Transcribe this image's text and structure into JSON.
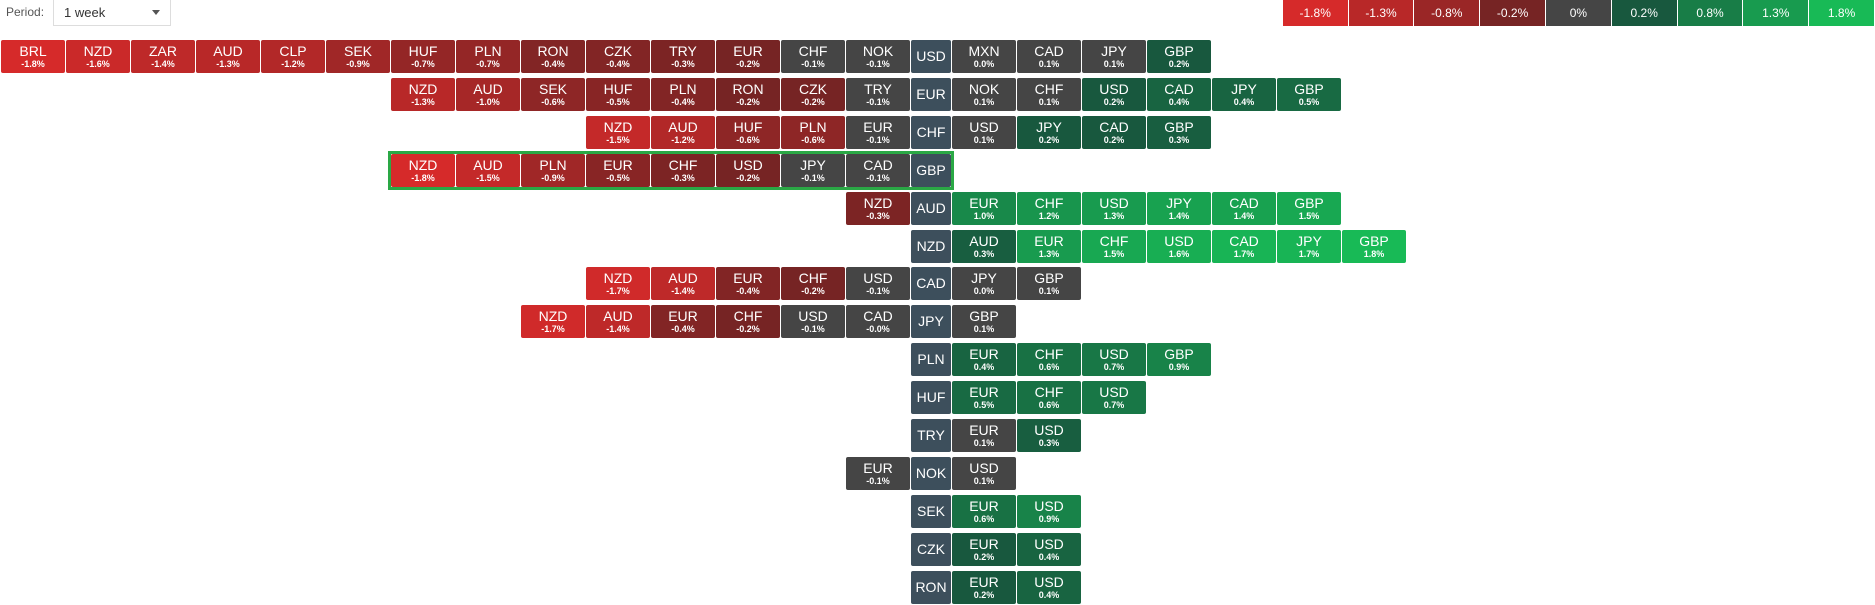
{
  "period_label": "Period:",
  "period_value": "1 week",
  "scale": [
    "-1.8%",
    "-1.3%",
    "-0.8%",
    "-0.2%",
    "0%",
    "0.2%",
    "0.8%",
    "1.3%",
    "1.8%"
  ],
  "rows": [
    {
      "base": "USD",
      "left": [
        {
          "code": "BRL",
          "change": "-1.8%"
        },
        {
          "code": "NZD",
          "change": "-1.6%"
        },
        {
          "code": "ZAR",
          "change": "-1.4%"
        },
        {
          "code": "AUD",
          "change": "-1.3%"
        },
        {
          "code": "CLP",
          "change": "-1.2%"
        },
        {
          "code": "SEK",
          "change": "-0.9%"
        },
        {
          "code": "HUF",
          "change": "-0.7%"
        },
        {
          "code": "PLN",
          "change": "-0.7%"
        },
        {
          "code": "RON",
          "change": "-0.4%"
        },
        {
          "code": "CZK",
          "change": "-0.4%"
        },
        {
          "code": "TRY",
          "change": "-0.3%"
        },
        {
          "code": "EUR",
          "change": "-0.2%"
        },
        {
          "code": "CHF",
          "change": "-0.1%"
        },
        {
          "code": "NOK",
          "change": "-0.1%"
        }
      ],
      "right": [
        {
          "code": "MXN",
          "change": "0.0%"
        },
        {
          "code": "CAD",
          "change": "0.1%"
        },
        {
          "code": "JPY",
          "change": "0.1%"
        },
        {
          "code": "GBP",
          "change": "0.2%"
        }
      ]
    },
    {
      "base": "EUR",
      "left": [
        {
          "code": "NZD",
          "change": "-1.3%"
        },
        {
          "code": "AUD",
          "change": "-1.0%"
        },
        {
          "code": "SEK",
          "change": "-0.6%"
        },
        {
          "code": "HUF",
          "change": "-0.5%"
        },
        {
          "code": "PLN",
          "change": "-0.4%"
        },
        {
          "code": "RON",
          "change": "-0.2%"
        },
        {
          "code": "CZK",
          "change": "-0.2%"
        },
        {
          "code": "TRY",
          "change": "-0.1%"
        }
      ],
      "right": [
        {
          "code": "NOK",
          "change": "0.1%"
        },
        {
          "code": "CHF",
          "change": "0.1%"
        },
        {
          "code": "USD",
          "change": "0.2%"
        },
        {
          "code": "CAD",
          "change": "0.4%"
        },
        {
          "code": "JPY",
          "change": "0.4%"
        },
        {
          "code": "GBP",
          "change": "0.5%"
        }
      ]
    },
    {
      "base": "CHF",
      "left": [
        {
          "code": "NZD",
          "change": "-1.5%"
        },
        {
          "code": "AUD",
          "change": "-1.2%"
        },
        {
          "code": "HUF",
          "change": "-0.6%"
        },
        {
          "code": "PLN",
          "change": "-0.6%"
        },
        {
          "code": "EUR",
          "change": "-0.1%"
        }
      ],
      "right": [
        {
          "code": "USD",
          "change": "0.1%"
        },
        {
          "code": "JPY",
          "change": "0.2%"
        },
        {
          "code": "CAD",
          "change": "0.2%"
        },
        {
          "code": "GBP",
          "change": "0.3%"
        }
      ]
    },
    {
      "base": "GBP",
      "highlight": true,
      "left": [
        {
          "code": "NZD",
          "change": "-1.8%"
        },
        {
          "code": "AUD",
          "change": "-1.5%"
        },
        {
          "code": "PLN",
          "change": "-0.9%"
        },
        {
          "code": "EUR",
          "change": "-0.5%"
        },
        {
          "code": "CHF",
          "change": "-0.3%"
        },
        {
          "code": "USD",
          "change": "-0.2%"
        },
        {
          "code": "JPY",
          "change": "-0.1%"
        },
        {
          "code": "CAD",
          "change": "-0.1%"
        }
      ],
      "right": []
    },
    {
      "base": "AUD",
      "left": [
        {
          "code": "NZD",
          "change": "-0.3%"
        }
      ],
      "right": [
        {
          "code": "EUR",
          "change": "1.0%"
        },
        {
          "code": "CHF",
          "change": "1.2%"
        },
        {
          "code": "USD",
          "change": "1.3%"
        },
        {
          "code": "JPY",
          "change": "1.4%"
        },
        {
          "code": "CAD",
          "change": "1.4%"
        },
        {
          "code": "GBP",
          "change": "1.5%"
        }
      ]
    },
    {
      "base": "NZD",
      "left": [],
      "right": [
        {
          "code": "AUD",
          "change": "0.3%"
        },
        {
          "code": "EUR",
          "change": "1.3%"
        },
        {
          "code": "CHF",
          "change": "1.5%"
        },
        {
          "code": "USD",
          "change": "1.6%"
        },
        {
          "code": "CAD",
          "change": "1.7%"
        },
        {
          "code": "JPY",
          "change": "1.7%"
        },
        {
          "code": "GBP",
          "change": "1.8%"
        }
      ]
    },
    {
      "base": "CAD",
      "left": [
        {
          "code": "NZD",
          "change": "-1.7%"
        },
        {
          "code": "AUD",
          "change": "-1.4%"
        },
        {
          "code": "EUR",
          "change": "-0.4%"
        },
        {
          "code": "CHF",
          "change": "-0.2%"
        },
        {
          "code": "USD",
          "change": "-0.1%"
        }
      ],
      "right": [
        {
          "code": "JPY",
          "change": "0.0%"
        },
        {
          "code": "GBP",
          "change": "0.1%"
        }
      ]
    },
    {
      "base": "JPY",
      "left": [
        {
          "code": "NZD",
          "change": "-1.7%"
        },
        {
          "code": "AUD",
          "change": "-1.4%"
        },
        {
          "code": "EUR",
          "change": "-0.4%"
        },
        {
          "code": "CHF",
          "change": "-0.2%"
        },
        {
          "code": "USD",
          "change": "-0.1%"
        },
        {
          "code": "CAD",
          "change": "-0.0%"
        }
      ],
      "right": [
        {
          "code": "GBP",
          "change": "0.1%"
        }
      ]
    },
    {
      "base": "PLN",
      "left": [],
      "right": [
        {
          "code": "EUR",
          "change": "0.4%"
        },
        {
          "code": "CHF",
          "change": "0.6%"
        },
        {
          "code": "USD",
          "change": "0.7%"
        },
        {
          "code": "GBP",
          "change": "0.9%"
        }
      ]
    },
    {
      "base": "HUF",
      "left": [],
      "right": [
        {
          "code": "EUR",
          "change": "0.5%"
        },
        {
          "code": "CHF",
          "change": "0.6%"
        },
        {
          "code": "USD",
          "change": "0.7%"
        }
      ]
    },
    {
      "base": "TRY",
      "left": [],
      "right": [
        {
          "code": "EUR",
          "change": "0.1%"
        },
        {
          "code": "USD",
          "change": "0.3%"
        }
      ]
    },
    {
      "base": "NOK",
      "left": [
        {
          "code": "EUR",
          "change": "-0.1%"
        }
      ],
      "right": [
        {
          "code": "USD",
          "change": "0.1%"
        }
      ]
    },
    {
      "base": "SEK",
      "left": [],
      "right": [
        {
          "code": "EUR",
          "change": "0.6%"
        },
        {
          "code": "USD",
          "change": "0.9%"
        }
      ]
    },
    {
      "base": "CZK",
      "left": [],
      "right": [
        {
          "code": "EUR",
          "change": "0.2%"
        },
        {
          "code": "USD",
          "change": "0.4%"
        }
      ]
    },
    {
      "base": "RON",
      "left": [],
      "right": [
        {
          "code": "EUR",
          "change": "0.2%"
        },
        {
          "code": "USD",
          "change": "0.4%"
        }
      ]
    }
  ]
}
